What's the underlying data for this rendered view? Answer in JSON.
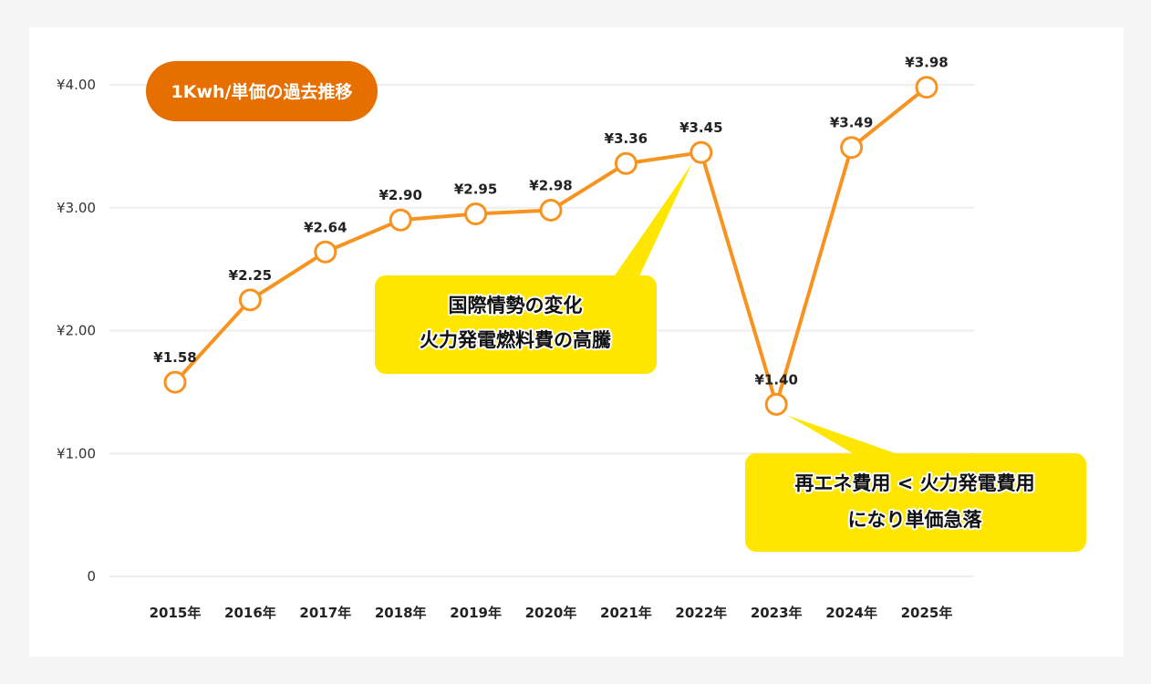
{
  "chart_data": {
    "type": "line",
    "title": "1Kwh/単価の過去推移",
    "categories": [
      "2015年",
      "2016年",
      "2017年",
      "2018年",
      "2019年",
      "2020年",
      "2021年",
      "2022年",
      "2023年",
      "2024年",
      "2025年"
    ],
    "values": [
      1.58,
      2.25,
      2.64,
      2.9,
      2.95,
      2.98,
      3.36,
      3.45,
      1.4,
      3.49,
      3.98
    ],
    "data_labels": [
      "¥1.58",
      "¥2.25",
      "¥2.64",
      "¥2.90",
      "¥2.95",
      "¥2.98",
      "¥3.36",
      "¥3.45",
      "¥1.40",
      "¥3.49",
      "¥3.98"
    ],
    "yticks": [
      0,
      1,
      2,
      3,
      4
    ],
    "ytick_labels": [
      "0",
      "¥1.00",
      "¥2.00",
      "¥3.00",
      "¥4.00"
    ],
    "ylim": [
      0,
      4
    ],
    "grid": true,
    "xlabel": "",
    "ylabel": "",
    "annotations": [
      {
        "lines": [
          "国際情勢の変化",
          "火力発電燃料費の高騰"
        ],
        "target": "2022年"
      },
      {
        "lines": [
          "再エネ費用 < 火力発電費用",
          "になり単価急落"
        ],
        "target": "2023年"
      }
    ]
  },
  "colors": {
    "line": "#f7931e",
    "badge": "#e66f00",
    "callout": "#ffe600",
    "grid": "#eeeeee"
  }
}
